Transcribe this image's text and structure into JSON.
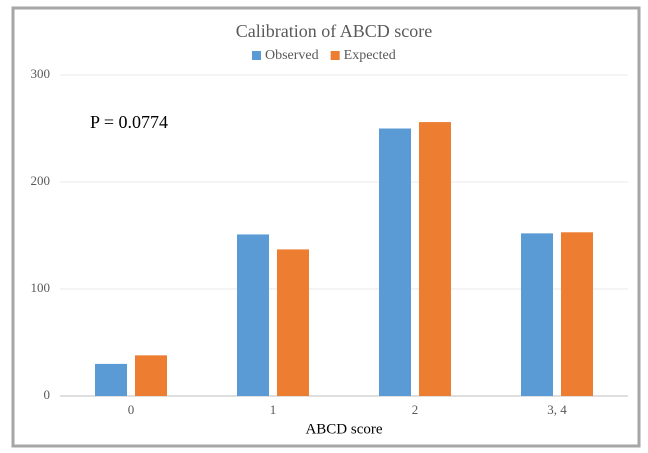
{
  "chart_data": {
    "type": "bar",
    "title": "Calibration of ABCD score",
    "x_label": "ABCD score",
    "annotation": "P = 0.0774",
    "categories": [
      "0",
      "1",
      "2",
      "3, 4"
    ],
    "series": [
      {
        "name": "Observed",
        "color": "#5b9bd5",
        "values": [
          30,
          151,
          250,
          152
        ]
      },
      {
        "name": "Expected",
        "color": "#ed7d31",
        "values": [
          38,
          137,
          256,
          153
        ]
      }
    ],
    "ylim": [
      0,
      300
    ],
    "yticks": [
      0,
      100,
      200,
      300
    ],
    "grid": true,
    "legend": "top"
  }
}
